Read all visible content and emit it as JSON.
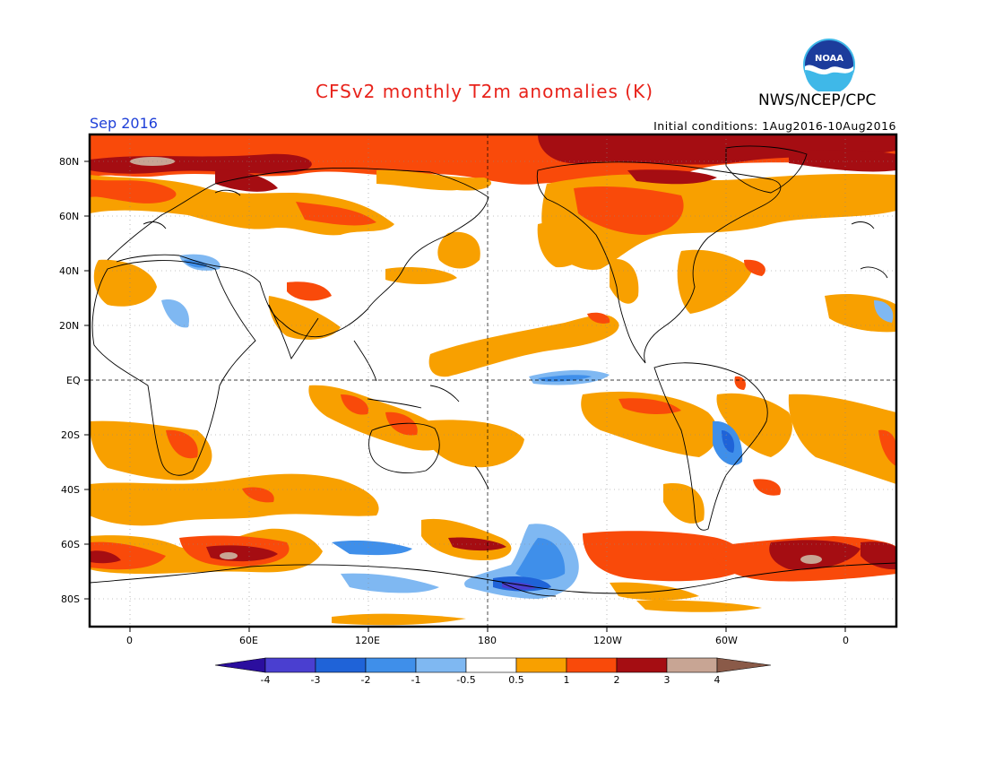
{
  "title": "CFSv2 monthly T2m anomalies (K)",
  "agency": "NWS/NCEP/CPC",
  "logo_text": "NOAA",
  "month": "Sep 2016",
  "initial_conditions": "Initial conditions: 1Aug2016-10Aug2016",
  "lat_labels": [
    "80N",
    "60N",
    "40N",
    "20N",
    "EQ",
    "20S",
    "40S",
    "60S",
    "80S"
  ],
  "lon_labels": [
    "0",
    "60E",
    "120E",
    "180",
    "120W",
    "60W",
    "0"
  ],
  "colorbar": {
    "labels": [
      "-4",
      "-3",
      "-2",
      "-1",
      "-0.5",
      "0.5",
      "1",
      "2",
      "3",
      "4"
    ],
    "colors": [
      "#2b0e9e",
      "#4a3fd0",
      "#1f63d8",
      "#3f8fea",
      "#7fb8f2",
      "#ffffff",
      "#f8a000",
      "#f94a0a",
      "#a50d12",
      "#c8a594",
      "#8a5a48"
    ]
  },
  "palette": {
    "light_orange": "#f8a000",
    "orange_red": "#f94a0a",
    "dark_red": "#a50d12",
    "pinkish": "#c8a594",
    "light_blue": "#7fb8f2",
    "mid_blue": "#3f8fea",
    "blue": "#1f63d8",
    "purple": "#4a3fd0"
  }
}
